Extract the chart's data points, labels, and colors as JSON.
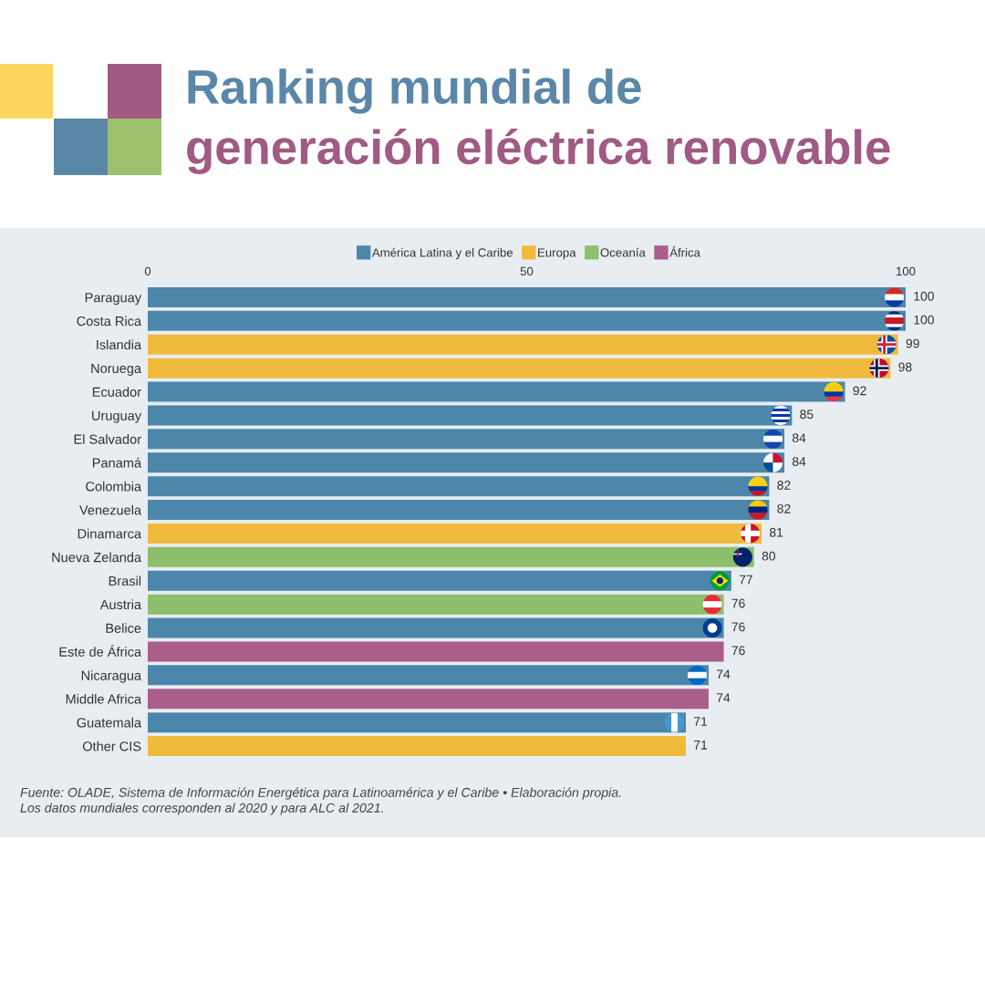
{
  "chart_data": {
    "type": "bar",
    "orientation": "horizontal",
    "title": "Ranking mundial de\ngeneración eléctrica renovable",
    "categories": [
      "Paraguay",
      "Costa Rica",
      "Islandia",
      "Noruega",
      "Ecuador",
      "Uruguay",
      "El Salvador",
      "Panamá",
      "Colombia",
      "Venezuela",
      "Dinamarca",
      "Nueva Zelanda",
      "Brasil",
      "Austria",
      "Belice",
      "Este de África",
      "Nicaragua",
      "Middle Africa",
      "Guatemala",
      "Other CIS"
    ],
    "series": [
      {
        "name": "América Latina y el Caribe",
        "color": "#4d86ab",
        "values": [
          100,
          100,
          null,
          null,
          92,
          85,
          84,
          84,
          82,
          82,
          null,
          null,
          77,
          null,
          76,
          null,
          74,
          null,
          71,
          null
        ]
      },
      {
        "name": "Europa",
        "color": "#f0bb3c",
        "values": [
          null,
          null,
          99,
          98,
          null,
          null,
          null,
          null,
          null,
          null,
          81,
          null,
          null,
          null,
          null,
          null,
          null,
          null,
          null,
          71
        ]
      },
      {
        "name": "Oceanía",
        "color": "#8dbf6c",
        "values": [
          null,
          null,
          null,
          null,
          null,
          null,
          null,
          null,
          null,
          null,
          null,
          80,
          null,
          76,
          null,
          null,
          null,
          null,
          null,
          null
        ]
      },
      {
        "name": "África",
        "color": "#a95e8c",
        "values": [
          null,
          null,
          null,
          null,
          null,
          null,
          null,
          null,
          null,
          null,
          null,
          null,
          null,
          null,
          null,
          76,
          null,
          74,
          null,
          null
        ]
      }
    ],
    "xlim": [
      0,
      100
    ],
    "xticks": [
      0,
      50,
      100
    ],
    "data_labels": true,
    "legend": "top",
    "grid": false,
    "annotations": [
      "Fuente: OLADE, Sistema de Información Energética para Latinoamérica y el Caribe • Elaboración propia.",
      "Los datos mundiales corresponden al 2020 y para ALC al 2021."
    ]
  }
}
